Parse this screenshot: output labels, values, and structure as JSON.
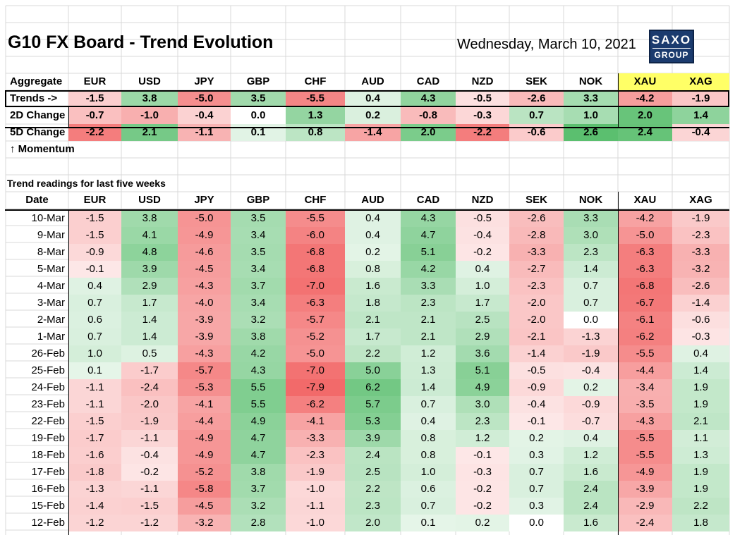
{
  "title": "G10 FX Board - Trend Evolution",
  "date": "Wednesday, March 10, 2021",
  "logo": {
    "line1": "SAXO",
    "line2": "GROUP"
  },
  "aggregate_label": "Aggregate",
  "currencies": [
    "EUR",
    "USD",
    "JPY",
    "GBP",
    "CHF",
    "AUD",
    "CAD",
    "NZD",
    "SEK",
    "NOK",
    "XAU",
    "XAG"
  ],
  "trends_row": {
    "label": "Trends ->",
    "values": [
      "-1.5",
      "3.8",
      "-5.0",
      "3.5",
      "-5.5",
      "0.4",
      "4.3",
      "-0.5",
      "-2.6",
      "3.3",
      "-4.2",
      "-1.9"
    ]
  },
  "change_2d": {
    "label": "2D Change",
    "values": [
      "-0.7",
      "-1.0",
      "-0.4",
      "0.0",
      "1.3",
      "0.2",
      "-0.8",
      "-0.3",
      "0.7",
      "1.0",
      "2.0",
      "1.4"
    ]
  },
  "change_5d": {
    "label": "5D Change",
    "values": [
      "-2.2",
      "2.1",
      "-1.1",
      "0.1",
      "0.8",
      "-1.4",
      "2.0",
      "-2.2",
      "-0.6",
      "2.6",
      "2.4",
      "-0.4"
    ]
  },
  "momentum_label": "↑ Momentum",
  "section_title": "Trend readings for last five weeks",
  "date_col_label": "Date",
  "rows": [
    {
      "date": "10-Mar",
      "values": [
        "-1.5",
        "3.8",
        "-5.0",
        "3.5",
        "-5.5",
        "0.4",
        "4.3",
        "-0.5",
        "-2.6",
        "3.3",
        "-4.2",
        "-1.9"
      ]
    },
    {
      "date": "9-Mar",
      "values": [
        "-1.5",
        "4.1",
        "-4.9",
        "3.4",
        "-6.0",
        "0.4",
        "4.7",
        "-0.4",
        "-2.8",
        "3.0",
        "-5.0",
        "-2.3"
      ]
    },
    {
      "date": "8-Mar",
      "values": [
        "-0.9",
        "4.8",
        "-4.6",
        "3.5",
        "-6.8",
        "0.2",
        "5.1",
        "-0.2",
        "-3.3",
        "2.3",
        "-6.3",
        "-3.3"
      ]
    },
    {
      "date": "5-Mar",
      "values": [
        "-0.1",
        "3.9",
        "-4.5",
        "3.4",
        "-6.8",
        "0.8",
        "4.2",
        "0.4",
        "-2.7",
        "1.4",
        "-6.3",
        "-3.2"
      ]
    },
    {
      "date": "4-Mar",
      "values": [
        "0.4",
        "2.9",
        "-4.3",
        "3.7",
        "-7.0",
        "1.6",
        "3.3",
        "1.0",
        "-2.3",
        "0.7",
        "-6.8",
        "-2.6"
      ]
    },
    {
      "date": "3-Mar",
      "values": [
        "0.7",
        "1.7",
        "-4.0",
        "3.4",
        "-6.3",
        "1.8",
        "2.3",
        "1.7",
        "-2.0",
        "0.7",
        "-6.7",
        "-1.4"
      ]
    },
    {
      "date": "2-Mar",
      "values": [
        "0.6",
        "1.4",
        "-3.9",
        "3.2",
        "-5.7",
        "2.1",
        "2.1",
        "2.5",
        "-2.0",
        "0.0",
        "-6.1",
        "-0.6"
      ]
    },
    {
      "date": "1-Mar",
      "values": [
        "0.7",
        "1.4",
        "-3.9",
        "3.8",
        "-5.2",
        "1.7",
        "2.1",
        "2.9",
        "-2.1",
        "-1.3",
        "-6.2",
        "-0.3"
      ]
    },
    {
      "date": "26-Feb",
      "values": [
        "1.0",
        "0.5",
        "-4.3",
        "4.2",
        "-5.0",
        "2.2",
        "1.2",
        "3.6",
        "-1.4",
        "-1.9",
        "-5.5",
        "0.4"
      ]
    },
    {
      "date": "25-Feb",
      "values": [
        "0.1",
        "-1.7",
        "-5.7",
        "4.3",
        "-7.0",
        "5.0",
        "1.3",
        "5.1",
        "-0.5",
        "-0.4",
        "-4.4",
        "1.4"
      ]
    },
    {
      "date": "24-Feb",
      "values": [
        "-1.1",
        "-2.4",
        "-5.3",
        "5.5",
        "-7.9",
        "6.2",
        "1.4",
        "4.9",
        "-0.9",
        "0.2",
        "-3.4",
        "1.9"
      ]
    },
    {
      "date": "23-Feb",
      "values": [
        "-1.1",
        "-2.0",
        "-4.1",
        "5.5",
        "-6.2",
        "5.7",
        "0.7",
        "3.0",
        "-0.4",
        "-0.9",
        "-3.5",
        "1.9"
      ]
    },
    {
      "date": "22-Feb",
      "values": [
        "-1.5",
        "-1.9",
        "-4.4",
        "4.9",
        "-4.1",
        "5.3",
        "0.4",
        "2.3",
        "-0.1",
        "-0.7",
        "-4.3",
        "2.1"
      ]
    },
    {
      "date": "19-Feb",
      "values": [
        "-1.7",
        "-1.1",
        "-4.9",
        "4.7",
        "-3.3",
        "3.9",
        "0.8",
        "1.2",
        "0.2",
        "0.4",
        "-5.5",
        "1.1"
      ]
    },
    {
      "date": "18-Feb",
      "values": [
        "-1.6",
        "-0.4",
        "-4.9",
        "4.7",
        "-2.3",
        "2.4",
        "0.8",
        "-0.1",
        "0.3",
        "1.2",
        "-5.5",
        "1.3"
      ]
    },
    {
      "date": "17-Feb",
      "values": [
        "-1.8",
        "-0.2",
        "-5.2",
        "3.8",
        "-1.9",
        "2.5",
        "1.0",
        "-0.3",
        "0.7",
        "1.6",
        "-4.9",
        "1.9"
      ]
    },
    {
      "date": "16-Feb",
      "values": [
        "-1.3",
        "-1.1",
        "-5.8",
        "3.7",
        "-1.0",
        "2.2",
        "0.6",
        "-0.2",
        "0.7",
        "2.4",
        "-3.9",
        "1.9"
      ]
    },
    {
      "date": "15-Feb",
      "values": [
        "-1.4",
        "-1.5",
        "-4.5",
        "3.2",
        "-1.1",
        "2.3",
        "0.7",
        "-0.2",
        "0.3",
        "2.4",
        "-2.9",
        "2.2"
      ]
    },
    {
      "date": "12-Feb",
      "values": [
        "-1.2",
        "-1.2",
        "-3.2",
        "2.8",
        "-1.0",
        "2.0",
        "0.1",
        "0.2",
        "0.0",
        "1.6",
        "-2.4",
        "1.8"
      ]
    }
  ],
  "colors": {
    "positive": "#5bbf6f",
    "negative": "#f26a6a",
    "neutral": "#ffffff",
    "metals_header": "#ffff66",
    "logo_bg": "#1b3b6e",
    "grid": "#d9d9d9"
  }
}
